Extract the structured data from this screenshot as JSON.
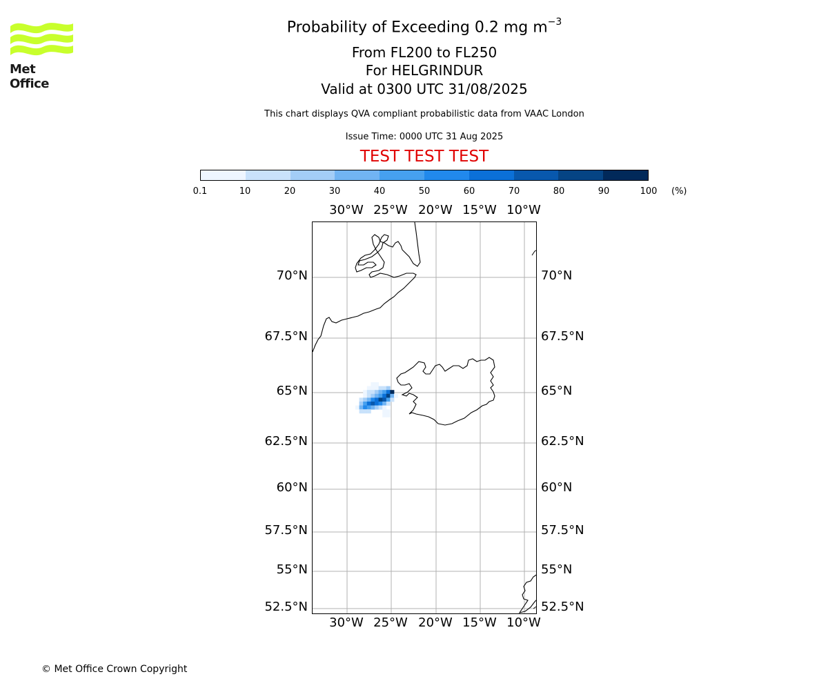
{
  "logo": {
    "text": "Met Office",
    "wave_color": "#c8ff2c"
  },
  "title": {
    "main": "Probability of Exceeding 0.2 mg m",
    "superscript": "−3"
  },
  "subtitles": [
    "From FL200 to FL250",
    "For HELGRINDUR",
    "Valid at 0300 UTC 31/08/2025"
  ],
  "info_line": "This chart displays QVA compliant probabilistic data from VAAC London",
  "issue_time": "Issue Time: 0000 UTC 31 Aug 2025",
  "test_banner": "TEST TEST TEST",
  "colorbar": {
    "ticks": [
      "0.1",
      "10",
      "20",
      "30",
      "40",
      "50",
      "60",
      "70",
      "80",
      "90",
      "100"
    ],
    "unit": "(%)",
    "colors": [
      "#eef6ff",
      "#c9e2fb",
      "#a3cdf7",
      "#71b4f3",
      "#46a0ef",
      "#2189ec",
      "#0b70d8",
      "#0858ad",
      "#054484",
      "#01295a"
    ]
  },
  "map": {
    "lon_labels": [
      "30°W",
      "25°W",
      "20°W",
      "15°W",
      "10°W"
    ],
    "lat_labels": [
      "70°N",
      "67.5°N",
      "65°N",
      "62.5°N",
      "60°N",
      "57.5°N",
      "55°N",
      "52.5°N"
    ],
    "ash_color_scale": "Blues"
  },
  "copyright": "© Met Office Crown Copyright"
}
